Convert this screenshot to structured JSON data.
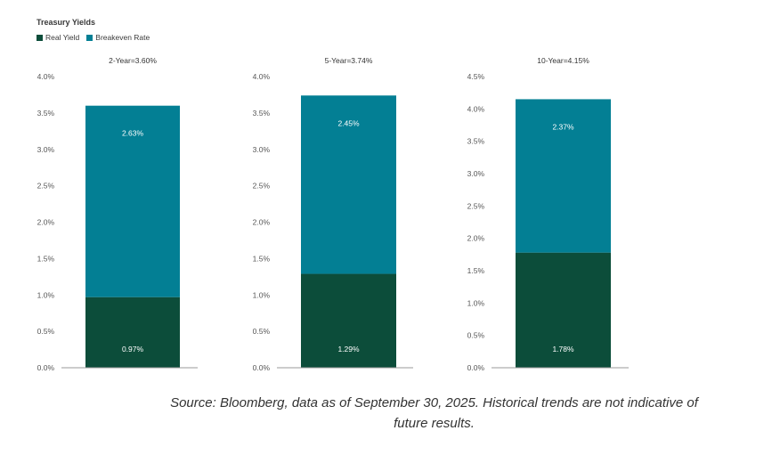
{
  "colors": {
    "real_yield": "#0c4d3a",
    "breakeven_rate": "#037f94",
    "axis": "#9a9a9a",
    "text": "#555555"
  },
  "legend": [
    {
      "label": "Real Yield",
      "color": "#0c4d3a"
    },
    {
      "label": "Breakeven Rate",
      "color": "#037f94"
    }
  ],
  "footer": {
    "source_line1": "Source: Bloomberg, data as of September 30, 2025. Historical trends are not indicative of",
    "source_line2": "future results."
  },
  "chart_data": [
    {
      "type": "bar",
      "stacked": true,
      "title": "Treasury Yields",
      "subtitle": "2-Year=3.60%",
      "categories": [
        "2-Year"
      ],
      "series": [
        {
          "name": "Real Yield",
          "values": [
            0.97
          ],
          "label": "0.97%"
        },
        {
          "name": "Breakeven Rate",
          "values": [
            2.63
          ],
          "label": "2.63%"
        }
      ],
      "ylim": [
        0,
        4.0
      ],
      "yticks": [
        "0.0%",
        "0.5%",
        "1.0%",
        "1.5%",
        "2.0%",
        "2.5%",
        "3.0%",
        "3.5%",
        "4.0%"
      ],
      "yticks_values": [
        0,
        0.5,
        1.0,
        1.5,
        2.0,
        2.5,
        3.0,
        3.5,
        4.0
      ],
      "grid": false
    },
    {
      "type": "bar",
      "stacked": true,
      "subtitle": "5-Year=3.74%",
      "categories": [
        "5-Year"
      ],
      "series": [
        {
          "name": "Real Yield",
          "values": [
            1.29
          ],
          "label": "1.29%"
        },
        {
          "name": "Breakeven Rate",
          "values": [
            2.45
          ],
          "label": "2.45%"
        }
      ],
      "ylim": [
        0,
        4.0
      ],
      "yticks": [
        "0.0%",
        "0.5%",
        "1.0%",
        "1.5%",
        "2.0%",
        "2.5%",
        "3.0%",
        "3.5%",
        "4.0%"
      ],
      "yticks_values": [
        0,
        0.5,
        1.0,
        1.5,
        2.0,
        2.5,
        3.0,
        3.5,
        4.0
      ],
      "grid": false
    },
    {
      "type": "bar",
      "stacked": true,
      "subtitle": "10-Year=4.15%",
      "categories": [
        "10-Year"
      ],
      "series": [
        {
          "name": "Real Yield",
          "values": [
            1.78
          ],
          "label": "1.78%"
        },
        {
          "name": "Breakeven Rate",
          "values": [
            2.37
          ],
          "label": "2.37%"
        }
      ],
      "ylim": [
        0,
        4.5
      ],
      "yticks": [
        "0.0%",
        "0.5%",
        "1.0%",
        "1.5%",
        "2.0%",
        "2.5%",
        "3.0%",
        "3.5%",
        "4.0%",
        "4.5%"
      ],
      "yticks_values": [
        0,
        0.5,
        1.0,
        1.5,
        2.0,
        2.5,
        3.0,
        3.5,
        4.0,
        4.5
      ],
      "grid": false
    }
  ]
}
